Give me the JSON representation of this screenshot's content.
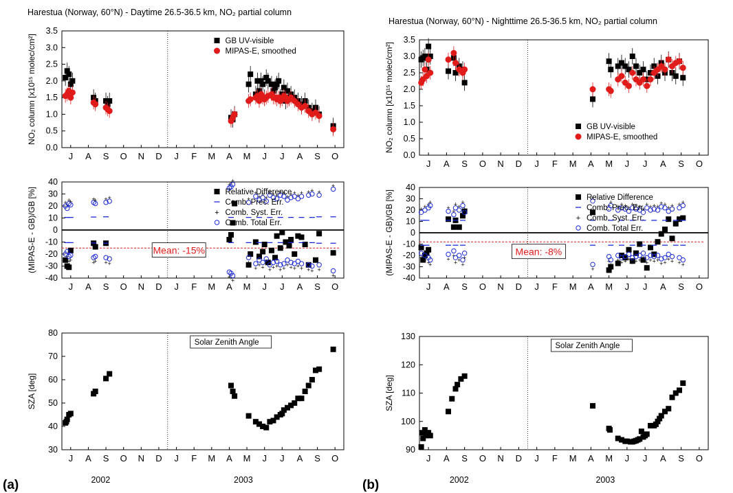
{
  "panel_labels": {
    "a": "(a)",
    "b": "(b)"
  },
  "years": {
    "y2002": "2002",
    "y2003": "2003"
  },
  "months": [
    "J",
    "A",
    "S",
    "O",
    "N",
    "D",
    "J",
    "F",
    "M",
    "A",
    "M",
    "J",
    "J",
    "A",
    "S",
    "O"
  ],
  "colors": {
    "gb": "#000000",
    "mipas": "#e11a1a",
    "error": "#1a28d8",
    "mean_line": "#e11a1a",
    "mean_text": "#e11a1a"
  },
  "chart_data": [
    {
      "id": "a-top",
      "type": "scatter",
      "title": "Harestua (Norway, 60°N) - Daytime 26.5-36.5 km, NO₂ partial column",
      "ylabel": "NO₂ column [x10¹⁵ molec/cm²]",
      "ylim": [
        0,
        3.5
      ],
      "yticks": [
        0,
        0.5,
        1.0,
        1.5,
        2.0,
        2.5,
        3.0,
        3.5
      ],
      "legend": {
        "position": "top-right",
        "entries": [
          "GB UV-visible",
          "MIPAS-E, smoothed"
        ]
      },
      "series": [
        {
          "name": "GB UV-visible",
          "marker": "square",
          "color": "#000000",
          "x": [
            0.2,
            0.3,
            0.4,
            0.5,
            0.6,
            1.8,
            1.9,
            2.5,
            2.6,
            2.7,
            9.6,
            9.7,
            9.8,
            10.6,
            10.7,
            11.0,
            11.1,
            11.2,
            11.3,
            11.4,
            11.5,
            11.6,
            11.7,
            11.9,
            12.0,
            12.1,
            12.2,
            12.3,
            12.4,
            12.5,
            12.6,
            12.7,
            12.8,
            12.9,
            13.0,
            13.2,
            13.4,
            13.6,
            13.8,
            14.0,
            14.2,
            14.4,
            14.6,
            15.4
          ],
          "y": [
            2.1,
            2.3,
            2.2,
            1.9,
            2.0,
            1.5,
            1.4,
            1.4,
            1.3,
            1.4,
            0.9,
            0.85,
            1.0,
            1.9,
            2.2,
            1.6,
            2.0,
            1.7,
            2.0,
            1.9,
            1.5,
            2.1,
            2.0,
            1.9,
            1.7,
            1.8,
            1.9,
            2.0,
            1.5,
            1.6,
            1.8,
            1.4,
            1.7,
            1.5,
            1.6,
            1.5,
            1.4,
            1.3,
            1.4,
            1.2,
            1.1,
            1.2,
            1.0,
            0.65
          ]
        },
        {
          "name": "MIPAS-E, smoothed",
          "marker": "circle",
          "color": "#e11a1a",
          "x": [
            0.2,
            0.3,
            0.4,
            0.5,
            0.6,
            1.8,
            1.9,
            2.5,
            2.6,
            2.7,
            9.6,
            9.7,
            9.8,
            10.6,
            10.7,
            11.0,
            11.1,
            11.2,
            11.3,
            11.4,
            11.5,
            11.6,
            11.7,
            11.9,
            12.0,
            12.1,
            12.2,
            12.3,
            12.4,
            12.5,
            12.6,
            12.7,
            12.8,
            12.9,
            13.0,
            13.2,
            13.4,
            13.6,
            13.8,
            14.0,
            14.2,
            14.4,
            14.6,
            15.4
          ],
          "y": [
            1.55,
            1.6,
            1.7,
            1.5,
            1.65,
            1.35,
            1.3,
            1.2,
            1.15,
            1.1,
            0.8,
            0.9,
            1.0,
            1.4,
            1.45,
            1.5,
            1.55,
            1.4,
            1.6,
            1.5,
            1.45,
            1.5,
            1.55,
            1.6,
            1.5,
            1.5,
            1.45,
            1.5,
            1.4,
            1.45,
            1.55,
            1.5,
            1.4,
            1.45,
            1.5,
            1.4,
            1.3,
            1.2,
            1.25,
            1.1,
            1.0,
            1.05,
            0.95,
            0.55
          ]
        }
      ]
    },
    {
      "id": "a-mid",
      "type": "scatter",
      "ylabel": "(MIPAS-E - GB)/GB [%]",
      "ylim": [
        -40,
        40
      ],
      "yticks": [
        -40,
        -30,
        -20,
        -10,
        0,
        10,
        20,
        30,
        40
      ],
      "legend": {
        "position": "top-right",
        "entries": [
          "Relative Difference",
          "Comb. Prec. Err.",
          "Comb. Syst. Err.",
          "Comb. Total Err."
        ]
      },
      "mean_label": "Mean: -15%",
      "mean_value": -15,
      "series": [
        {
          "name": "Relative Difference",
          "marker": "square",
          "color": "#000000",
          "x": [
            0.2,
            0.3,
            0.4,
            0.5,
            1.8,
            1.9,
            2.5,
            9.5,
            9.6,
            9.7,
            9.8,
            10.6,
            10.7,
            11.0,
            11.2,
            11.4,
            11.5,
            11.7,
            11.9,
            12.1,
            12.2,
            12.4,
            12.5,
            12.7,
            12.9,
            13.0,
            13.2,
            13.4,
            13.6,
            13.8,
            14.0,
            14.4,
            14.6,
            15.4
          ],
          "y": [
            -25,
            -30,
            -31,
            -17,
            -11,
            -14,
            -11,
            -8,
            -4,
            6,
            22,
            -29,
            -20,
            -10,
            -22,
            -18,
            -12,
            -27,
            -17,
            -23,
            -5,
            -15,
            -2,
            -10,
            -13,
            -8,
            -20,
            -5,
            -6,
            -12,
            -29,
            -25,
            -3,
            -19
          ]
        },
        {
          "name": "Comb. Prec. Err.",
          "marker": "dash",
          "color": "#1a28d8",
          "x": [
            0.3,
            0.5,
            1.8,
            2.5,
            9.6,
            10.6,
            11.2,
            11.8,
            12.4,
            13.0,
            13.6,
            14.2,
            14.6,
            15.4
          ],
          "y": [
            10.5,
            10.5,
            10.8,
            11.0,
            10.5,
            10.5,
            10.5,
            10.5,
            10.5,
            10.5,
            10.5,
            10.5,
            11.0,
            11.0
          ]
        },
        {
          "name": "Comb. Total Err.",
          "marker": "circle-open",
          "color": "#1a28d8",
          "x": [
            0.2,
            0.3,
            0.4,
            0.5,
            1.8,
            1.9,
            2.5,
            2.7,
            9.5,
            9.6,
            9.7,
            10.6,
            11.0,
            11.2,
            11.4,
            11.6,
            11.8,
            12.0,
            12.2,
            12.4,
            12.6,
            12.8,
            13.0,
            13.2,
            13.4,
            13.6,
            14.0,
            14.2,
            14.6,
            15.4
          ],
          "y": [
            20,
            18,
            22,
            21,
            23,
            22,
            23,
            24,
            35,
            36,
            38,
            23,
            28,
            25,
            27,
            24,
            29,
            27,
            26,
            29,
            28,
            25,
            27,
            28,
            26,
            28,
            29,
            30,
            29,
            34
          ]
        }
      ]
    },
    {
      "id": "a-bot",
      "type": "scatter",
      "ylabel": "SZA [deg]",
      "ylim": [
        30,
        80
      ],
      "yticks": [
        30,
        40,
        50,
        60,
        70,
        80
      ],
      "legend": {
        "position": "top-center",
        "entries": [
          "Solar Zenith Angle"
        ]
      },
      "series": [
        {
          "name": "Solar Zenith Angle",
          "marker": "square",
          "color": "#000000",
          "x": [
            0.2,
            0.25,
            0.3,
            0.4,
            0.5,
            1.8,
            1.9,
            2.5,
            2.7,
            9.6,
            9.7,
            9.8,
            10.6,
            11.0,
            11.2,
            11.4,
            11.6,
            11.8,
            12.0,
            12.2,
            12.4,
            12.5,
            12.6,
            12.8,
            13.0,
            13.2,
            13.4,
            13.6,
            13.8,
            14.0,
            14.2,
            14.4,
            14.6,
            15.4
          ],
          "y": [
            41.5,
            42,
            43,
            45,
            45.5,
            54,
            55,
            60.5,
            62.5,
            57.5,
            55,
            53,
            44.5,
            42,
            41,
            40,
            39.5,
            42,
            42.5,
            44,
            45,
            45.5,
            47,
            48,
            49,
            50,
            52,
            52,
            55,
            57.5,
            60,
            64,
            64.5,
            73
          ]
        }
      ]
    },
    {
      "id": "b-top",
      "type": "scatter",
      "title": "Harestua (Norway, 60°N) - Nighttime 26.5-36.5 km, NO₂ partial column",
      "ylabel": "NO₂ column [x10¹⁵ molec/cm²]",
      "ylim": [
        0,
        3.5
      ],
      "yticks": [
        0,
        0.5,
        1.0,
        1.5,
        2.0,
        2.5,
        3.0,
        3.5
      ],
      "legend": {
        "position": "bottom-right",
        "entries": [
          "GB UV-visible",
          "MIPAS-E, smoothed"
        ]
      },
      "series": [
        {
          "name": "GB UV-visible",
          "marker": "square",
          "color": "#000000",
          "x": [
            0.1,
            0.2,
            0.3,
            0.4,
            0.5,
            0.6,
            1.6,
            1.9,
            2.0,
            2.2,
            2.4,
            2.5,
            9.6,
            10.5,
            10.6,
            11.0,
            11.2,
            11.4,
            11.6,
            11.8,
            12.0,
            12.2,
            12.4,
            12.6,
            12.8,
            13.0,
            13.2,
            13.4,
            13.6,
            13.8,
            14.0,
            14.2,
            14.4,
            14.6
          ],
          "y": [
            2.9,
            2.95,
            3.0,
            2.6,
            3.3,
            3.0,
            2.55,
            2.95,
            2.5,
            2.7,
            2.6,
            2.2,
            1.7,
            2.85,
            2.6,
            2.7,
            2.8,
            2.7,
            2.6,
            3.0,
            2.7,
            2.5,
            2.6,
            2.3,
            2.5,
            2.7,
            2.4,
            2.8,
            2.5,
            2.9,
            2.5,
            2.4,
            2.85,
            2.35
          ]
        },
        {
          "name": "MIPAS-E, smoothed",
          "marker": "circle",
          "color": "#e11a1a",
          "x": [
            0.1,
            0.2,
            0.3,
            0.4,
            0.5,
            0.6,
            1.6,
            1.9,
            2.0,
            2.2,
            2.4,
            2.5,
            9.6,
            10.5,
            10.6,
            11.0,
            11.2,
            11.4,
            11.6,
            11.8,
            12.0,
            12.2,
            12.4,
            12.6,
            12.8,
            13.0,
            13.2,
            13.4,
            13.6,
            13.8,
            14.0,
            14.2,
            14.4,
            14.6
          ],
          "y": [
            2.2,
            2.3,
            2.6,
            2.4,
            2.9,
            2.5,
            2.9,
            3.1,
            2.8,
            2.6,
            2.5,
            2.6,
            2.0,
            2.0,
            1.95,
            2.3,
            2.4,
            2.2,
            2.1,
            2.5,
            2.3,
            2.2,
            2.3,
            2.1,
            2.3,
            2.5,
            2.6,
            2.7,
            2.6,
            2.9,
            2.7,
            2.8,
            2.85,
            2.65
          ]
        }
      ]
    },
    {
      "id": "b-mid",
      "type": "scatter",
      "ylabel": "(MIPAS-E - GB)/GB [%]",
      "ylim": [
        -40,
        40
      ],
      "yticks": [
        -40,
        -30,
        -20,
        -10,
        0,
        10,
        20,
        30,
        40
      ],
      "legend": {
        "position": "top-right",
        "entries": [
          "Relative Difference",
          "Comb. Prec. Err.",
          "Comb. Syst. Err.",
          "Comb. Total Err."
        ]
      },
      "mean_label": "Mean: -8%",
      "mean_value": -8,
      "series": [
        {
          "name": "Relative Difference",
          "marker": "square",
          "color": "#000000",
          "x": [
            0.1,
            0.2,
            0.3,
            0.4,
            0.5,
            1.6,
            1.9,
            2.0,
            2.2,
            2.4,
            2.5,
            9.6,
            10.5,
            10.6,
            11.0,
            11.2,
            11.4,
            11.6,
            11.8,
            12.0,
            12.2,
            12.4,
            12.6,
            12.8,
            13.0,
            13.2,
            13.4,
            13.6,
            13.8,
            14.0,
            14.2,
            14.4,
            14.6
          ],
          "y": [
            -13,
            -24,
            -20,
            -18,
            -15,
            12,
            5,
            11,
            5,
            15,
            19,
            18,
            -33,
            -30,
            -27,
            -20,
            -22,
            -15,
            -25,
            -18,
            -10,
            -24,
            -31,
            -13,
            -19,
            -8,
            -1,
            3,
            12,
            -5,
            8,
            12,
            13
          ]
        },
        {
          "name": "Comb. Prec. Err.",
          "marker": "dash",
          "color": "#1a28d8",
          "x": [
            0.2,
            0.4,
            1.6,
            2.0,
            2.4,
            9.6,
            10.6,
            11.2,
            11.8,
            12.4,
            13.0,
            13.6,
            14.2,
            14.6
          ],
          "y": [
            11,
            11,
            11,
            11,
            11,
            11,
            11,
            11,
            11,
            11,
            11,
            11,
            11,
            11
          ]
        },
        {
          "name": "Comb. Total Err.",
          "marker": "circle-open",
          "color": "#1a28d8",
          "x": [
            0.1,
            0.3,
            0.5,
            0.6,
            1.6,
            1.9,
            2.0,
            2.2,
            2.4,
            2.5,
            9.6,
            10.5,
            10.6,
            11.0,
            11.2,
            11.4,
            11.6,
            11.8,
            12.0,
            12.2,
            12.4,
            12.6,
            12.8,
            13.0,
            13.2,
            13.4,
            13.6,
            13.8,
            14.0,
            14.4,
            14.6
          ],
          "y": [
            18,
            20,
            22,
            24,
            19,
            16,
            22,
            20,
            24,
            18,
            28,
            21,
            24,
            20,
            22,
            21,
            19,
            22,
            21,
            20,
            18,
            22,
            20,
            21,
            20,
            23,
            22,
            19,
            21,
            22,
            24
          ]
        }
      ]
    },
    {
      "id": "b-bot",
      "type": "scatter",
      "ylabel": "SZA [deg]",
      "ylim": [
        90,
        130
      ],
      "yticks": [
        90,
        100,
        110,
        120,
        130
      ],
      "legend": {
        "position": "top-center",
        "entries": [
          "Solar Zenith Angle"
        ]
      },
      "series": [
        {
          "name": "Solar Zenith Angle",
          "marker": "square",
          "color": "#000000",
          "x": [
            0.1,
            0.15,
            0.2,
            0.3,
            0.35,
            0.4,
            0.5,
            0.6,
            1.6,
            1.8,
            2.0,
            2.1,
            2.3,
            2.5,
            9.6,
            10.5,
            10.55,
            11.0,
            11.2,
            11.4,
            11.5,
            11.7,
            11.8,
            11.9,
            12.0,
            12.1,
            12.2,
            12.3,
            12.4,
            12.5,
            12.6,
            12.8,
            13.0,
            13.1,
            13.2,
            13.3,
            13.4,
            13.6,
            13.8,
            14.0,
            14.2,
            14.4,
            14.6
          ],
          "y": [
            91,
            96,
            94,
            97,
            95,
            96,
            96,
            95,
            103.5,
            108,
            111.5,
            113,
            115,
            116,
            105.5,
            97.5,
            97,
            94,
            93.5,
            93,
            93,
            92.8,
            92.8,
            93,
            93.2,
            93.5,
            93.8,
            96.5,
            94.5,
            95,
            95.5,
            98.5,
            98.5,
            99,
            100,
            101,
            102,
            103.5,
            104.5,
            108.5,
            110,
            111,
            113.5
          ]
        }
      ]
    }
  ]
}
